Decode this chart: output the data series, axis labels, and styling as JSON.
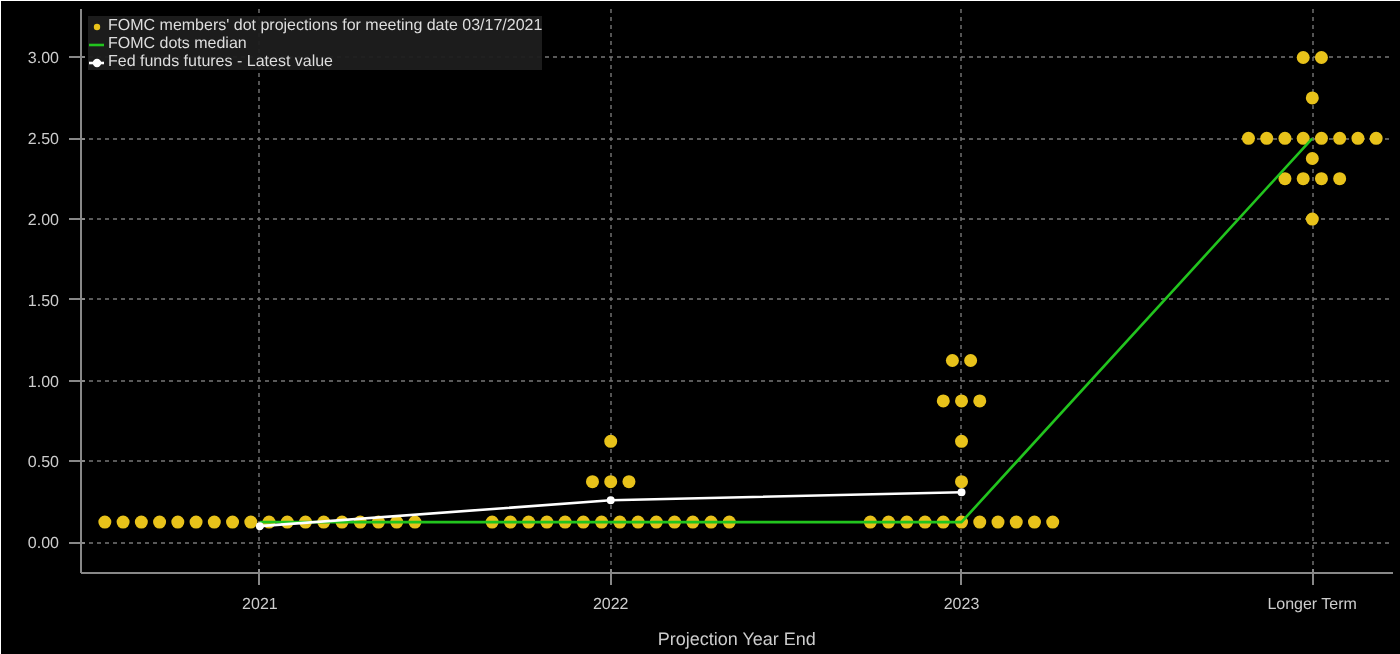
{
  "chart_data": {
    "type": "scatter",
    "xlabel": "Projection Year End",
    "categories": [
      "2021",
      "2022",
      "2023",
      "Longer Term"
    ],
    "ylim": [
      -0.19,
      3.3
    ],
    "yticks": [
      {
        "value": 0,
        "label": "0.00"
      },
      {
        "value": 0.5,
        "label": "0.50"
      },
      {
        "value": 1,
        "label": "1.00"
      },
      {
        "value": 1.5,
        "label": "1.50"
      },
      {
        "value": 2,
        "label": "2.00"
      },
      {
        "value": 2.5,
        "label": "2.50"
      },
      {
        "value": 3,
        "label": "3.00"
      }
    ],
    "grid": true,
    "legend": "top left",
    "marker": "circle",
    "series": [
      {
        "name": "FOMC members' dot projections for meeting date 03/17/2021",
        "color": "#e8c21a",
        "values": [
          0.125,
          0.125,
          0.125,
          3.0
        ]
      },
      {
        "color": "#e8c21a",
        "values": [
          0.125,
          0.125,
          0.125,
          3.0
        ]
      },
      {
        "color": "#e8c21a",
        "values": [
          0.125,
          0.125,
          0.125,
          2.75
        ]
      },
      {
        "color": "#e8c21a",
        "values": [
          0.125,
          0.125,
          0.125,
          2.5
        ]
      },
      {
        "color": "#e8c21a",
        "values": [
          0.125,
          0.125,
          0.125,
          2.5
        ]
      },
      {
        "color": "#e8c21a",
        "values": [
          0.125,
          0.125,
          0.125,
          2.5
        ]
      },
      {
        "color": "#e8c21a",
        "values": [
          0.125,
          0.125,
          0.125,
          2.5
        ]
      },
      {
        "color": "#e8c21a",
        "values": [
          0.125,
          0.125,
          0.125,
          2.5
        ]
      },
      {
        "color": "#e8c21a",
        "values": [
          0.125,
          0.125,
          0.125,
          2.5
        ]
      },
      {
        "color": "#e8c21a",
        "values": [
          0.125,
          0.125,
          0.125,
          2.5
        ]
      },
      {
        "color": "#e8c21a",
        "values": [
          0.125,
          0.125,
          0.125,
          2.5
        ]
      },
      {
        "color": "#e8c21a",
        "values": [
          0.125,
          0.125,
          0.375,
          2.375
        ]
      },
      {
        "color": "#e8c21a",
        "values": [
          0.125,
          0.125,
          0.625,
          2.25
        ]
      },
      {
        "color": "#e8c21a",
        "values": [
          0.125,
          0.125,
          0.875,
          2.25
        ]
      },
      {
        "color": "#e8c21a",
        "values": [
          0.125,
          0.375,
          0.875,
          2.25
        ]
      },
      {
        "color": "#e8c21a",
        "values": [
          0.125,
          0.375,
          0.875,
          2.25
        ]
      },
      {
        "color": "#e8c21a",
        "values": [
          0.125,
          0.375,
          1.125,
          2.0
        ]
      },
      {
        "color": "#e8c21a",
        "values": [
          0.125,
          0.625,
          1.125,
          null
        ]
      },
      {
        "name": "FOMC dots median",
        "type": "line",
        "marker": "none",
        "color": "#22c41e",
        "values": [
          0.125,
          0.125,
          0.125,
          2.5
        ]
      },
      {
        "name": "Fed funds futures - Latest value",
        "type": "line",
        "marker": "circle",
        "color": "#ffffff",
        "values": [
          0.1,
          0.26,
          0.31,
          null
        ]
      }
    ]
  }
}
